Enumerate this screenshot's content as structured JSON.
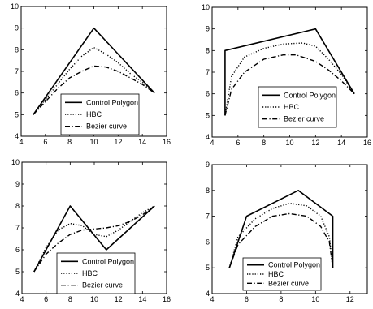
{
  "chart_data": [
    {
      "type": "line",
      "xlim": [
        4,
        16
      ],
      "ylim": [
        4,
        10
      ],
      "xticks": [
        4,
        6,
        8,
        10,
        12,
        14,
        16
      ],
      "yticks": [
        4,
        5,
        6,
        7,
        8,
        9,
        10
      ],
      "xtick_labels": [
        "4",
        "6",
        "8",
        "10",
        "12",
        "14",
        "16"
      ],
      "ytick_labels": [
        "4",
        "5",
        "6",
        "7",
        "8",
        "9",
        "10"
      ],
      "grid": false,
      "legend_position": "bottom-center",
      "series": [
        {
          "name": "Control Polygon",
          "style": "solid",
          "x": [
            5,
            10,
            15
          ],
          "y": [
            5,
            9,
            6
          ]
        },
        {
          "name": "HBC",
          "style": "dotted",
          "x": [
            5,
            6,
            7,
            8,
            9,
            10,
            11,
            12,
            13,
            14,
            15
          ],
          "y": [
            5,
            5.7,
            6.4,
            7.1,
            7.7,
            8.1,
            7.8,
            7.4,
            6.9,
            6.5,
            6
          ]
        },
        {
          "name": "Bezier curve",
          "style": "dashdot",
          "x": [
            5,
            6,
            7,
            8,
            9,
            10,
            11,
            12,
            13,
            14,
            15
          ],
          "y": [
            5,
            5.6,
            6.2,
            6.7,
            7.0,
            7.25,
            7.2,
            7.0,
            6.7,
            6.4,
            6
          ]
        }
      ]
    },
    {
      "type": "line",
      "xlim": [
        4,
        16
      ],
      "ylim": [
        4,
        10
      ],
      "xticks": [
        4,
        6,
        8,
        10,
        12,
        14,
        16
      ],
      "yticks": [
        4,
        5,
        6,
        7,
        8,
        9,
        10
      ],
      "xtick_labels": [
        "4",
        "6",
        "8",
        "10",
        "12",
        "14",
        "16"
      ],
      "ytick_labels": [
        "4",
        "5",
        "6",
        "7",
        "8",
        "9",
        "10"
      ],
      "grid": false,
      "legend_position": "bottom-right",
      "series": [
        {
          "name": "Control Polygon",
          "style": "solid",
          "x": [
            5,
            5,
            12,
            15
          ],
          "y": [
            5,
            8,
            9,
            6
          ]
        },
        {
          "name": "HBC",
          "style": "dotted",
          "x": [
            5,
            5.5,
            6.5,
            8,
            9.5,
            11,
            12,
            13,
            14,
            15
          ],
          "y": [
            5,
            6.8,
            7.7,
            8.1,
            8.3,
            8.35,
            8.2,
            7.6,
            6.9,
            6
          ]
        },
        {
          "name": "Bezier curve",
          "style": "dashdot",
          "x": [
            5,
            5.5,
            6.5,
            8,
            9.5,
            10.5,
            12,
            13,
            14,
            15
          ],
          "y": [
            5,
            6.2,
            7.0,
            7.6,
            7.8,
            7.8,
            7.5,
            7.1,
            6.6,
            6
          ]
        }
      ]
    },
    {
      "type": "line",
      "xlim": [
        4,
        16
      ],
      "ylim": [
        4,
        10
      ],
      "xticks": [
        4,
        6,
        8,
        10,
        12,
        14,
        16
      ],
      "yticks": [
        4,
        5,
        6,
        7,
        8,
        9,
        10
      ],
      "xtick_labels": [
        "4",
        "6",
        "8",
        "10",
        "12",
        "14",
        "16"
      ],
      "ytick_labels": [
        "4",
        "5",
        "6",
        "7",
        "8",
        "9",
        "10"
      ],
      "grid": false,
      "legend_position": "bottom-center",
      "series": [
        {
          "name": "Control Polygon",
          "style": "solid",
          "x": [
            5,
            8,
            11,
            15
          ],
          "y": [
            5,
            8,
            6,
            8
          ]
        },
        {
          "name": "HBC",
          "style": "dotted",
          "x": [
            5,
            6,
            7,
            8,
            9,
            10,
            11,
            12,
            13,
            14,
            15
          ],
          "y": [
            5,
            6.1,
            6.9,
            7.2,
            7.1,
            6.7,
            6.6,
            6.9,
            7.3,
            7.7,
            8
          ]
        },
        {
          "name": "Bezier curve",
          "style": "dashdot",
          "x": [
            5,
            6,
            7,
            8,
            9,
            10,
            11,
            12,
            13,
            14,
            15
          ],
          "y": [
            5,
            5.8,
            6.3,
            6.7,
            6.9,
            6.95,
            7.0,
            7.1,
            7.3,
            7.6,
            8
          ]
        }
      ]
    },
    {
      "type": "line",
      "xlim": [
        4,
        13
      ],
      "ylim": [
        4,
        9
      ],
      "xticks": [
        4,
        6,
        8,
        10,
        12
      ],
      "yticks": [
        4,
        5,
        6,
        7,
        8,
        9
      ],
      "xtick_labels": [
        "4",
        "6",
        "8",
        "10",
        "12"
      ],
      "ytick_labels": [
        "4",
        "5",
        "6",
        "7",
        "8",
        "9"
      ],
      "grid": false,
      "legend_position": "bottom-center",
      "series": [
        {
          "name": "Control Polygon",
          "style": "solid",
          "x": [
            5,
            6,
            9,
            11,
            11
          ],
          "y": [
            5,
            7,
            8,
            7,
            5
          ]
        },
        {
          "name": "HBC",
          "style": "dotted",
          "x": [
            5,
            5.5,
            6.5,
            7.5,
            8.5,
            9.5,
            10.3,
            10.8,
            11
          ],
          "y": [
            5,
            6.2,
            6.9,
            7.3,
            7.5,
            7.4,
            7.0,
            6.2,
            5
          ]
        },
        {
          "name": "Bezier curve",
          "style": "dashdot",
          "x": [
            5,
            5.5,
            6.5,
            7.5,
            8.5,
            9.5,
            10.3,
            10.8,
            11
          ],
          "y": [
            5,
            5.9,
            6.6,
            7.0,
            7.1,
            7.0,
            6.6,
            6.0,
            5
          ]
        }
      ]
    }
  ]
}
